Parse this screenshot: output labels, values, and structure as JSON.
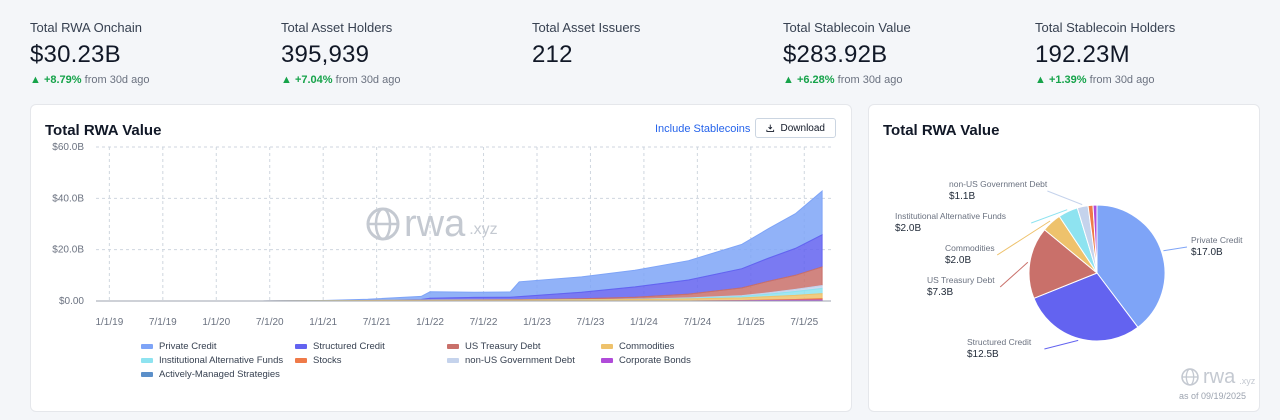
{
  "stats": [
    {
      "label": "Total RWA Onchain",
      "value": "$30.23B",
      "change": "+8.79%",
      "suffix": "from 30d ago"
    },
    {
      "label": "Total Asset Holders",
      "value": "395,939",
      "change": "+7.04%",
      "suffix": "from 30d ago"
    },
    {
      "label": "Total Asset Issuers",
      "value": "212",
      "change": "",
      "suffix": ""
    },
    {
      "label": "Total Stablecoin Value",
      "value": "$283.92B",
      "change": "+6.28%",
      "suffix": "from 30d ago"
    },
    {
      "label": "Total Stablecoin Holders",
      "value": "192.23M",
      "change": "+1.39%",
      "suffix": "from 30d ago"
    }
  ],
  "main_card": {
    "title": "Total RWA Value",
    "include_stablecoins": "Include Stablecoins",
    "download": "Download",
    "watermark": "rwa",
    "watermark_suffix": ".xyz"
  },
  "pie_card": {
    "title": "Total RWA Value",
    "watermark": "rwa",
    "watermark_suffix": ".xyz",
    "as_of": "as of 09/19/2025"
  },
  "colors": {
    "Private Credit": "#7ea4f7",
    "Structured Credit": "#6363f0",
    "US Treasury Debt": "#c9706a",
    "Commodities": "#eec26c",
    "Institutional Alternative Funds": "#8ee3f0",
    "Stocks": "#ef7a48",
    "non-US Government Debt": "#c5d3ec",
    "Corporate Bonds": "#b04bd9",
    "Actively-Managed Strategies": "#5b8fc9"
  },
  "chart_data": [
    {
      "type": "area",
      "stacked": true,
      "x": [
        "2018-12",
        "2019-06",
        "2019-12",
        "2020-06",
        "2020-12",
        "2021-06",
        "2021-12",
        "2022-01",
        "2022-06",
        "2022-10",
        "2022-11",
        "2023-06",
        "2023-12",
        "2024-06",
        "2024-12",
        "2025-03",
        "2025-06",
        "2025-09"
      ],
      "series": [
        {
          "name": "Corporate Bonds",
          "values": [
            0,
            0,
            0,
            0,
            0,
            0,
            0,
            0,
            0,
            0,
            0,
            0,
            0,
            0,
            0.1,
            0.2,
            0.3,
            0.4
          ]
        },
        {
          "name": "Stocks",
          "values": [
            0,
            0,
            0,
            0,
            0,
            0,
            0,
            0,
            0,
            0,
            0,
            0,
            0,
            0,
            0.1,
            0.2,
            0.3,
            0.5
          ]
        },
        {
          "name": "Commodities",
          "values": [
            0,
            0,
            0,
            0,
            0.1,
            0.2,
            0.3,
            0.3,
            0.4,
            0.4,
            0.4,
            0.5,
            0.6,
            0.8,
            1.0,
            1.3,
            1.6,
            2.0
          ]
        },
        {
          "name": "Institutional Alternative Funds",
          "values": [
            0,
            0,
            0,
            0,
            0,
            0,
            0,
            0,
            0,
            0,
            0,
            0,
            0.1,
            0.3,
            0.6,
            1.0,
            1.5,
            2.0
          ]
        },
        {
          "name": "non-US Government Debt",
          "values": [
            0,
            0,
            0,
            0,
            0,
            0,
            0,
            0,
            0,
            0,
            0,
            0,
            0,
            0.1,
            0.3,
            0.5,
            0.8,
            1.1
          ]
        },
        {
          "name": "US Treasury Debt",
          "values": [
            0,
            0,
            0,
            0,
            0,
            0,
            0,
            0,
            0,
            0.1,
            0.1,
            0.4,
            0.8,
            1.5,
            3.0,
            4.5,
            5.5,
            7.3
          ]
        },
        {
          "name": "Structured Credit",
          "values": [
            0,
            0,
            0,
            0,
            0,
            0,
            0.3,
            0.8,
            1.0,
            1.0,
            1.2,
            2.5,
            4.0,
            5.5,
            7.5,
            9.0,
            10.5,
            12.5
          ]
        },
        {
          "name": "Private Credit",
          "values": [
            0,
            0,
            0,
            0,
            0,
            0.5,
            1.2,
            2.5,
            2.0,
            2.0,
            5.8,
            6.0,
            6.5,
            7.5,
            9.5,
            11.5,
            13.5,
            17.0
          ]
        }
      ],
      "yticks": [
        "$0.00",
        "$20.0B",
        "$40.0B",
        "$60.0B"
      ],
      "ylim": [
        0,
        60
      ],
      "xticks": [
        "1/1/19",
        "7/1/19",
        "1/1/20",
        "7/1/20",
        "1/1/21",
        "7/1/21",
        "1/1/22",
        "7/1/22",
        "1/1/23",
        "7/1/23",
        "1/1/24",
        "7/1/24",
        "1/1/25",
        "7/1/25"
      ],
      "legend": [
        "Private Credit",
        "Structured Credit",
        "US Treasury Debt",
        "Commodities",
        "Institutional Alternative Funds",
        "Stocks",
        "non-US Government Debt",
        "Corporate Bonds",
        "Actively-Managed Strategies"
      ],
      "grid": true
    },
    {
      "type": "pie",
      "slices": [
        {
          "name": "Private Credit",
          "value": 17.0,
          "label": "$17.0B"
        },
        {
          "name": "Structured Credit",
          "value": 12.5,
          "label": "$12.5B"
        },
        {
          "name": "US Treasury Debt",
          "value": 7.3,
          "label": "$7.3B"
        },
        {
          "name": "Commodities",
          "value": 2.0,
          "label": "$2.0B"
        },
        {
          "name": "Institutional Alternative Funds",
          "value": 2.0,
          "label": "$2.0B"
        },
        {
          "name": "non-US Government Debt",
          "value": 1.1,
          "label": "$1.1B"
        },
        {
          "name": "Stocks",
          "value": 0.5,
          "label": ""
        },
        {
          "name": "Corporate Bonds",
          "value": 0.4,
          "label": ""
        }
      ]
    }
  ]
}
